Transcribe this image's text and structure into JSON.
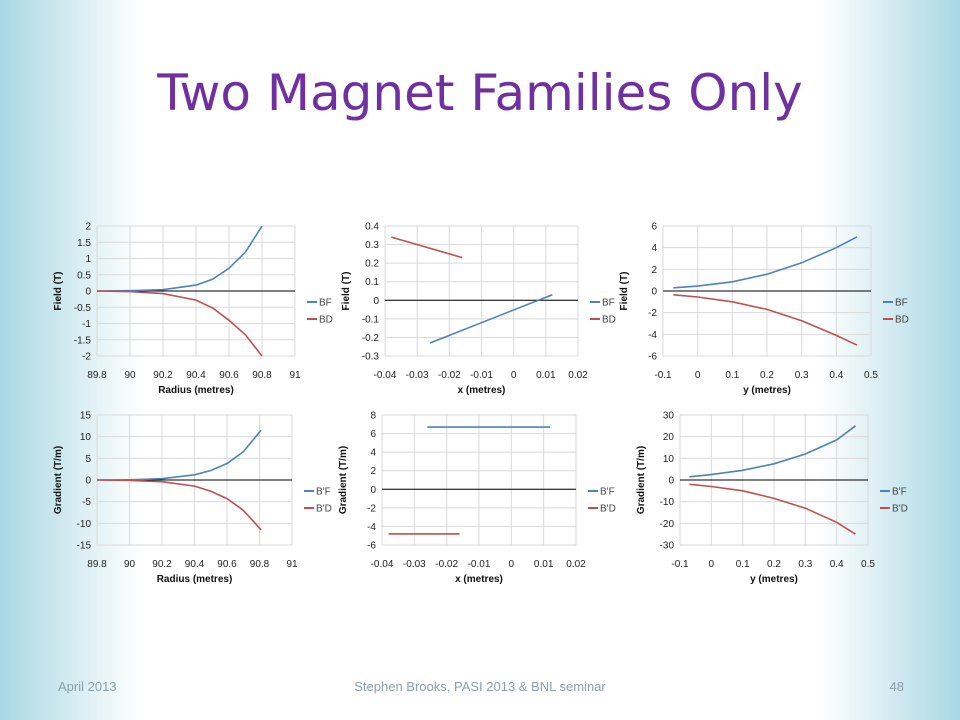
{
  "slide": {
    "title": "Two Magnet Families Only",
    "footer_left": "April 2013",
    "footer_center": "Stephen Brooks, PASI 2013 & BNL seminar",
    "footer_right": "48"
  },
  "colors": {
    "series_f": "#4f81bd",
    "series_d": "#c0504d",
    "title": "#7030a0",
    "grid": "#d9d9d9"
  },
  "chart_data": [
    {
      "type": "line",
      "xlabel": "Radius (metres)",
      "ylabel": "Field (T)",
      "xlim": [
        89.8,
        91
      ],
      "ylim": [
        -2,
        2
      ],
      "xticks": [
        "89.8",
        "90",
        "90.2",
        "90.4",
        "90.6",
        "90.8",
        "91"
      ],
      "yticks": [
        "-2",
        "-1.5",
        "-1",
        "-0.5",
        "0",
        "0.5",
        "1",
        "1.5",
        "2"
      ],
      "grid": true,
      "legend": "right",
      "series": [
        {
          "name": "BF",
          "x": [
            89.8,
            90.0,
            90.2,
            90.4,
            90.5,
            90.6,
            90.7,
            90.8
          ],
          "y": [
            0.0,
            0.01,
            0.04,
            0.18,
            0.36,
            0.7,
            1.2,
            2.0
          ]
        },
        {
          "name": "BD",
          "x": [
            89.8,
            90.0,
            90.2,
            90.4,
            90.5,
            90.6,
            90.7,
            90.8
          ],
          "y": [
            0.0,
            -0.02,
            -0.08,
            -0.28,
            -0.52,
            -0.9,
            -1.35,
            -2.0
          ]
        }
      ]
    },
    {
      "type": "line",
      "xlabel": "x (metres)",
      "ylabel": "Field (T)",
      "xlim": [
        -0.04,
        0.02
      ],
      "ylim": [
        -0.3,
        0.4
      ],
      "xticks": [
        "-0.04",
        "-0.03",
        "-0.02",
        "-0.01",
        "0",
        "0.01",
        "0.02"
      ],
      "yticks": [
        "-0.3",
        "-0.2",
        "-0.1",
        "0",
        "0.1",
        "0.2",
        "0.3",
        "0.4"
      ],
      "grid": true,
      "legend": "right",
      "series": [
        {
          "name": "BF",
          "x": [
            -0.026,
            0.012
          ],
          "y": [
            -0.23,
            0.03
          ]
        },
        {
          "name": "BD",
          "x": [
            -0.038,
            -0.016
          ],
          "y": [
            0.34,
            0.23
          ]
        }
      ]
    },
    {
      "type": "line",
      "xlabel": "y (metres)",
      "ylabel": "Field (T)",
      "xlim": [
        -0.1,
        0.5
      ],
      "ylim": [
        -6,
        6
      ],
      "xticks": [
        "-0.1",
        "0",
        "0.1",
        "0.2",
        "0.3",
        "0.4",
        "0.5"
      ],
      "yticks": [
        "-6",
        "-4",
        "-2",
        "0",
        "2",
        "4",
        "6"
      ],
      "grid": true,
      "legend": "right",
      "series": [
        {
          "name": "BF",
          "x": [
            -0.07,
            0.0,
            0.1,
            0.2,
            0.3,
            0.4,
            0.46
          ],
          "y": [
            0.3,
            0.45,
            0.85,
            1.55,
            2.6,
            4.0,
            5.0
          ]
        },
        {
          "name": "BD",
          "x": [
            -0.07,
            0.0,
            0.1,
            0.2,
            0.3,
            0.4,
            0.46
          ],
          "y": [
            -0.35,
            -0.55,
            -1.0,
            -1.7,
            -2.75,
            -4.1,
            -5.0
          ]
        }
      ]
    },
    {
      "type": "line",
      "xlabel": "Radius (metres)",
      "ylabel": "Gradient (T/m)",
      "xlim": [
        89.8,
        91
      ],
      "ylim": [
        -15,
        15
      ],
      "xticks": [
        "89.8",
        "90",
        "90.2",
        "90.4",
        "90.6",
        "90.8",
        "91"
      ],
      "yticks": [
        "-15",
        "-10",
        "-5",
        "0",
        "5",
        "10",
        "15"
      ],
      "grid": true,
      "legend": "right",
      "series": [
        {
          "name": "B'F",
          "x": [
            89.8,
            90.0,
            90.2,
            90.4,
            90.5,
            90.6,
            90.7,
            90.81
          ],
          "y": [
            0.0,
            0.05,
            0.3,
            1.2,
            2.2,
            3.8,
            6.5,
            11.5
          ]
        },
        {
          "name": "B'D",
          "x": [
            89.8,
            90.0,
            90.2,
            90.4,
            90.5,
            90.6,
            90.7,
            90.81
          ],
          "y": [
            0.0,
            -0.1,
            -0.4,
            -1.4,
            -2.6,
            -4.3,
            -7.0,
            -11.5
          ]
        }
      ]
    },
    {
      "type": "line",
      "xlabel": "x (metres)",
      "ylabel": "Gradient (T/m)",
      "xlim": [
        -0.04,
        0.02
      ],
      "ylim": [
        -6,
        8
      ],
      "xticks": [
        "-0.04",
        "-0.03",
        "-0.02",
        "-0.01",
        "0",
        "0.01",
        "0.02"
      ],
      "yticks": [
        "-6",
        "-4",
        "-2",
        "0",
        "2",
        "4",
        "6",
        "8"
      ],
      "grid": true,
      "legend": "right",
      "series": [
        {
          "name": "B'F",
          "x": [
            -0.026,
            0.012
          ],
          "y": [
            6.7,
            6.7
          ]
        },
        {
          "name": "B'D",
          "x": [
            -0.038,
            -0.016
          ],
          "y": [
            -4.8,
            -4.8
          ]
        }
      ]
    },
    {
      "type": "line",
      "xlabel": "y (metres)",
      "ylabel": "Gradient (T/m)",
      "xlim": [
        -0.1,
        0.5
      ],
      "ylim": [
        -30,
        30
      ],
      "xticks": [
        "-0.1",
        "0",
        "0.1",
        "0.2",
        "0.3",
        "0.4",
        "0.5"
      ],
      "yticks": [
        "-30",
        "-20",
        "-10",
        "0",
        "10",
        "20",
        "30"
      ],
      "grid": true,
      "legend": "right",
      "series": [
        {
          "name": "B'F",
          "x": [
            -0.07,
            0.0,
            0.1,
            0.2,
            0.3,
            0.4,
            0.46
          ],
          "y": [
            1.5,
            2.5,
            4.5,
            7.5,
            12.0,
            18.5,
            25.0
          ]
        },
        {
          "name": "B'D",
          "x": [
            -0.07,
            0.0,
            0.1,
            0.2,
            0.3,
            0.4,
            0.46
          ],
          "y": [
            -2.0,
            -3.0,
            -5.0,
            -8.5,
            -13.0,
            -19.5,
            -25.0
          ]
        }
      ]
    }
  ]
}
